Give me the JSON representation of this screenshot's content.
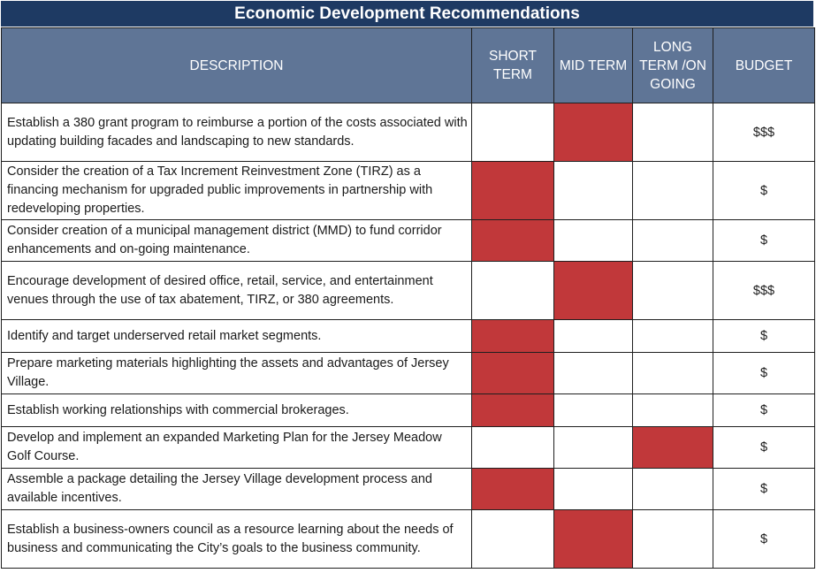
{
  "title": "Economic Development Recommendations",
  "headers": {
    "description": "DESCRIPTION",
    "short_term": "SHORT TERM",
    "mid_term": "MID TERM",
    "long_term": "LONG TERM /ON GOING",
    "budget": "BUDGET"
  },
  "colors": {
    "title_bg": "#1e3a63",
    "header_bg": "#5f7596",
    "marked": "#c1383a"
  },
  "rows": [
    {
      "description": "Establish a 380 grant program to reimburse a portion of the costs associated with updating building facades and landscaping to new standards.",
      "term": "mid",
      "budget": "$$$"
    },
    {
      "description": "Consider the creation of a Tax Increment Reinvestment Zone (TIRZ) as a financing mechanism for upgraded public improvements in partnership with redeveloping properties.",
      "term": "short",
      "budget": "$"
    },
    {
      "description": "Consider creation of a municipal management district (MMD) to fund corridor enhancements and on-going maintenance.",
      "term": "short",
      "budget": "$"
    },
    {
      "description": "Encourage development of desired office, retail, service, and entertainment venues through the use of tax abatement, TIRZ, or 380 agreements.",
      "term": "mid",
      "budget": "$$$"
    },
    {
      "description": "Identify and target underserved retail market segments.",
      "term": "short",
      "budget": "$"
    },
    {
      "description": "Prepare marketing materials highlighting the assets and advantages of Jersey Village.",
      "term": "short",
      "budget": "$"
    },
    {
      "description": "Establish working relationships with commercial brokerages.",
      "term": "short",
      "budget": "$"
    },
    {
      "description": "Develop and implement an expanded Marketing Plan for the Jersey Meadow Golf Course.",
      "term": "long",
      "budget": "$"
    },
    {
      "description": "Assemble a package detailing the Jersey Village development process and available incentives.",
      "term": "short",
      "budget": "$"
    },
    {
      "description": "Establish a business-owners council as a resource learning about the needs of business and communicating the City’s goals to the business community.",
      "term": "mid",
      "budget": "$"
    }
  ]
}
